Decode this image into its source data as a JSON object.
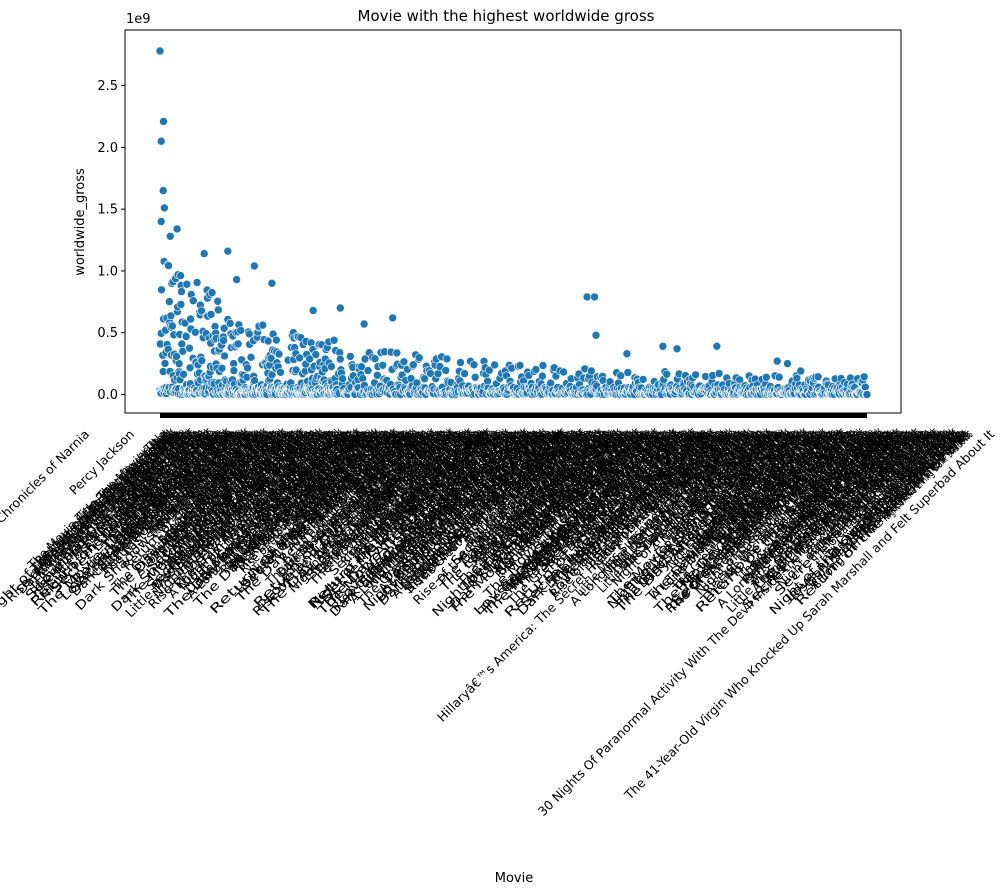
{
  "chart_data": {
    "type": "scatter",
    "title": "Movie with the highest worldwide gross",
    "xlabel": "Movie",
    "ylabel": "worldwide_gross",
    "y_offset_text": "1e9",
    "y_unit_multiplier": 1000000000,
    "ylim": [
      -0.15,
      2.95
    ],
    "yticks": [
      0.0,
      0.5,
      1.0,
      1.5,
      2.0,
      2.5
    ],
    "ytick_labels": [
      "0.0",
      "0.5",
      "1.0",
      "1.5",
      "2.0",
      "2.5"
    ],
    "grid": false,
    "legend": "none",
    "marker_color": "#1f77b4",
    "marker_edge_color": "#ffffff",
    "x_tick_rotation_deg": 45,
    "x_category_count": 2400,
    "highlighted_points": [
      {
        "x_index": 0,
        "y": 2.78
      },
      {
        "x_index": 4,
        "y": 2.05
      },
      {
        "x_index": 12,
        "y": 2.21
      },
      {
        "x_index": 11,
        "y": 1.65
      },
      {
        "x_index": 15,
        "y": 1.51
      },
      {
        "x_index": 4,
        "y": 1.4
      },
      {
        "x_index": 58,
        "y": 1.34
      },
      {
        "x_index": 35,
        "y": 1.28
      },
      {
        "x_index": 230,
        "y": 1.16
      },
      {
        "x_index": 150,
        "y": 1.14
      },
      {
        "x_index": 320,
        "y": 1.04
      },
      {
        "x_index": 260,
        "y": 0.93
      },
      {
        "x_index": 380,
        "y": 0.9
      },
      {
        "x_index": 520,
        "y": 0.68
      },
      {
        "x_index": 612,
        "y": 0.7
      },
      {
        "x_index": 693,
        "y": 0.57
      },
      {
        "x_index": 790,
        "y": 0.62
      },
      {
        "x_index": 1450,
        "y": 0.79
      },
      {
        "x_index": 1475,
        "y": 0.79
      },
      {
        "x_index": 1480,
        "y": 0.48
      },
      {
        "x_index": 1585,
        "y": 0.33
      },
      {
        "x_index": 1707,
        "y": 0.39
      },
      {
        "x_index": 1755,
        "y": 0.37
      },
      {
        "x_index": 1890,
        "y": 0.39
      },
      {
        "x_index": 2095,
        "y": 0.27
      },
      {
        "x_index": 2130,
        "y": 0.25
      },
      {
        "x_index": 2175,
        "y": 0.19
      },
      {
        "x_index": 2400,
        "y": 0.0
      }
    ],
    "x_tick_labels_visible": [
      "The Chronicles of Narnia",
      "Percy Jackson",
      "Asterix",
      "In the Name of the King",
      "The Adventures",
      "Walk the Line",
      "Gengis Khan",
      "Alexander",
      "The Assassination",
      "Das Boot",
      "The Pirates",
      "Birdman",
      "Precious",
      "A Haunting in Connecticut",
      "Alpha & Omega",
      "Hannah Montana: The Movie",
      "Hillaryâ€™s America: The Secret History of the Democratic Party",
      "A Nightmare on Elm Street",
      "Marilyn",
      "30 Nights Of Paranormal Activity With The Devil Inside the Girl With the Dragon Tattoo",
      "Once in a Lifetime",
      "The 41-Year-Old Virgin Who Knocked Up Sarah Marshall and Felt Superbad About It",
      "Shooting",
      "Forgetting"
    ]
  }
}
